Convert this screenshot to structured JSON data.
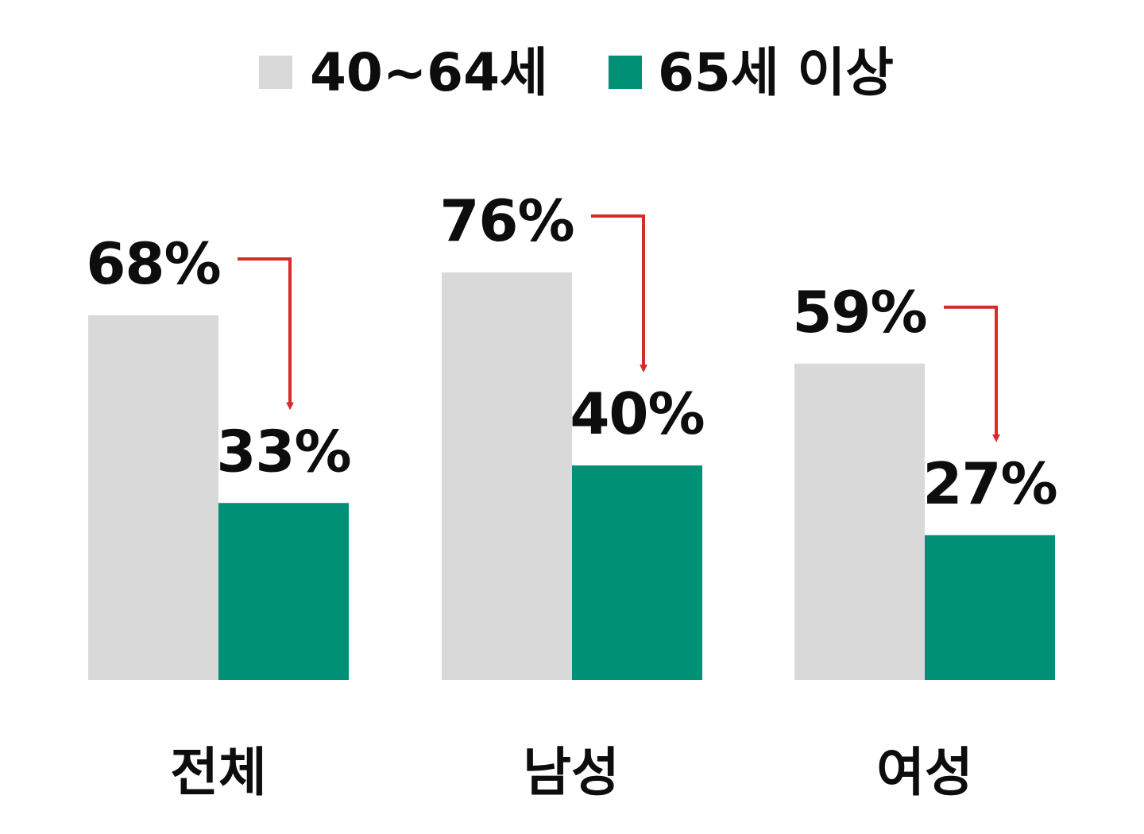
{
  "colors": {
    "series_1": "#d9d9d9",
    "series_2": "#009076",
    "arrow": "#d62b2b",
    "text": "#0d0d0d"
  },
  "chart_data": {
    "type": "bar",
    "categories": [
      "전체",
      "남성",
      "여성"
    ],
    "series": [
      {
        "name": "40~64세",
        "values": [
          68,
          76,
          59
        ]
      },
      {
        "name": "65세 이상",
        "values": [
          33,
          40,
          27
        ]
      }
    ],
    "value_labels": [
      [
        "68%",
        "76%",
        "59%"
      ],
      [
        "33%",
        "40%",
        "27%"
      ]
    ],
    "unit": "%",
    "ylim": [
      0,
      100
    ],
    "legend_position": "top-center",
    "grid": false,
    "annotations": "red arrows from 40~64세 value to 65세 이상 value in each category"
  }
}
